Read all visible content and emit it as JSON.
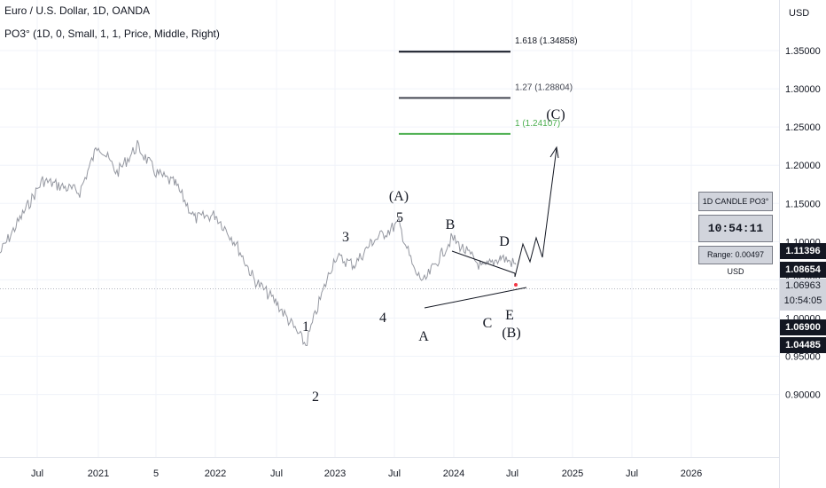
{
  "header": {
    "title": "Euro / U.S. Dollar, 1D, OANDA",
    "indicator": "PO3° (1D, 0, Small, 1, 1, Price, Middle, Right)"
  },
  "price_axis": {
    "currency": "USD",
    "ticks": [
      "1.35000",
      "1.30000",
      "1.25000",
      "1.20000",
      "1.15000",
      "1.10000",
      "1.05000",
      "1.00000",
      "0.95000",
      "0.90000"
    ],
    "price_tags": [
      {
        "text": "1.11396",
        "style": "dark",
        "price": 1.11396
      },
      {
        "text": "1.08654",
        "style": "dark",
        "price": 1.08654
      },
      {
        "text": "1.06900",
        "style": "dark",
        "price": 1.069
      },
      {
        "text": "1.04485",
        "style": "dark",
        "price": 1.04485
      }
    ],
    "current_price": "1.06963",
    "countdown": "10:54:05"
  },
  "time_axis": {
    "labels": [
      "Jul",
      "2021",
      "5",
      "2022",
      "Jul",
      "2023",
      "Jul",
      "2024",
      "Jul",
      "2025",
      "Jul",
      "2026"
    ]
  },
  "fib_levels": [
    {
      "label": "1.618 (1.34858)",
      "price": 1.34858,
      "color": "#131722"
    },
    {
      "label": "1.27 (1.28804)",
      "price": 1.28804,
      "color": "#434651"
    },
    {
      "label": "1 (1.24107)",
      "price": 1.24107,
      "color": "#4caf50"
    }
  ],
  "wave_labels": [
    "1",
    "2",
    "3",
    "4",
    "(A)",
    "5",
    "A",
    "B",
    "C",
    "D",
    "E",
    "(B)",
    "(C)"
  ],
  "widget": {
    "title": "1D CANDLE PO3°",
    "time": "10:54:11",
    "range": "Range: 0.00497 USD"
  },
  "colors": {
    "candles": "#b2b5be",
    "drawing": "#131722",
    "fib_green": "#4caf50",
    "marker": "#f23645"
  },
  "chart_data": {
    "type": "line",
    "title": "Euro / U.S. Dollar, 1D, OANDA",
    "x": [
      "2020-05",
      "2020-08",
      "2020-11",
      "2021-01",
      "2021-03",
      "2021-05",
      "2021-07",
      "2021-09",
      "2021-11",
      "2022-01",
      "2022-03",
      "2022-05",
      "2022-07",
      "2022-09",
      "2022-11",
      "2023-01",
      "2023-03",
      "2023-05",
      "2023-07",
      "2023-09",
      "2023-10",
      "2024-01",
      "2024-04",
      "2024-06",
      "2024-07"
    ],
    "series": [
      {
        "values": [
          1.085,
          1.18,
          1.165,
          1.228,
          1.19,
          1.225,
          1.19,
          1.175,
          1.13,
          1.135,
          1.1,
          1.05,
          1.02,
          0.965,
          1.02,
          1.08,
          1.07,
          1.1,
          1.124,
          1.06,
          1.048,
          1.105,
          1.065,
          1.08,
          1.07
        ]
      }
    ],
    "ylim": [
      0.88,
      1.39
    ]
  }
}
